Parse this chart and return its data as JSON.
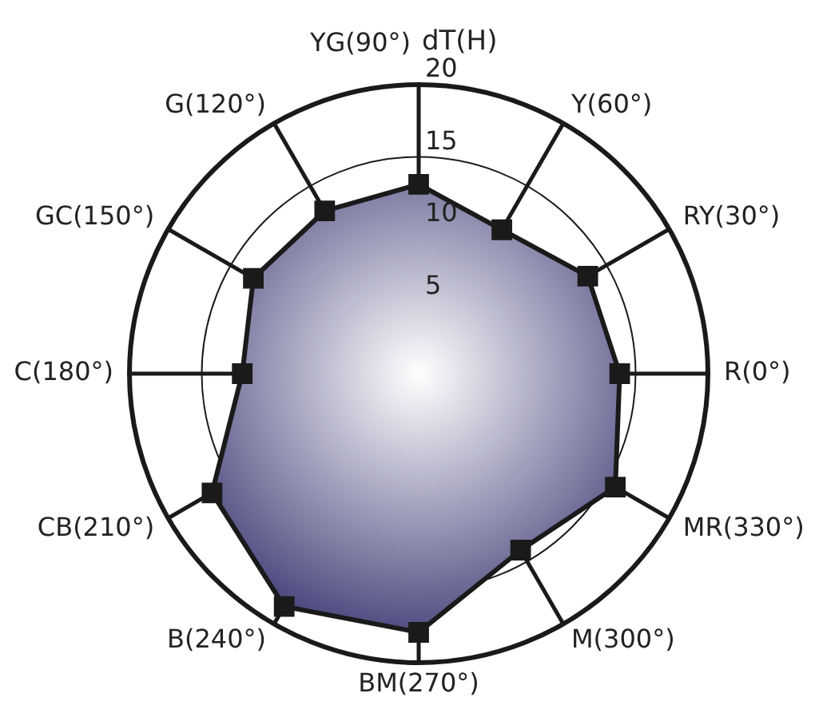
{
  "chart_data": {
    "type": "radar",
    "ylabel": "dT(H)",
    "categories": [
      "YG(90°)",
      "Y(60°)",
      "RY(30°)",
      "R(0°)",
      "MR(330°)",
      "M(300°)",
      "BM(270°)",
      "B(240°)",
      "CB(210°)",
      "C(180°)",
      "GC(150°)",
      "G(120°)"
    ],
    "series": [
      {
        "color": "#3a3872",
        "values": [
          13.1,
          11.5,
          13.5,
          13.9,
          15.7,
          14.1,
          17.9,
          18.6,
          16.5,
          12.2,
          13.2,
          13
        ]
      }
    ],
    "ylim": [
      0,
      20
    ],
    "yticks": [
      5,
      10,
      15,
      20
    ],
    "marker": "square",
    "grid": true,
    "legend": false
  }
}
